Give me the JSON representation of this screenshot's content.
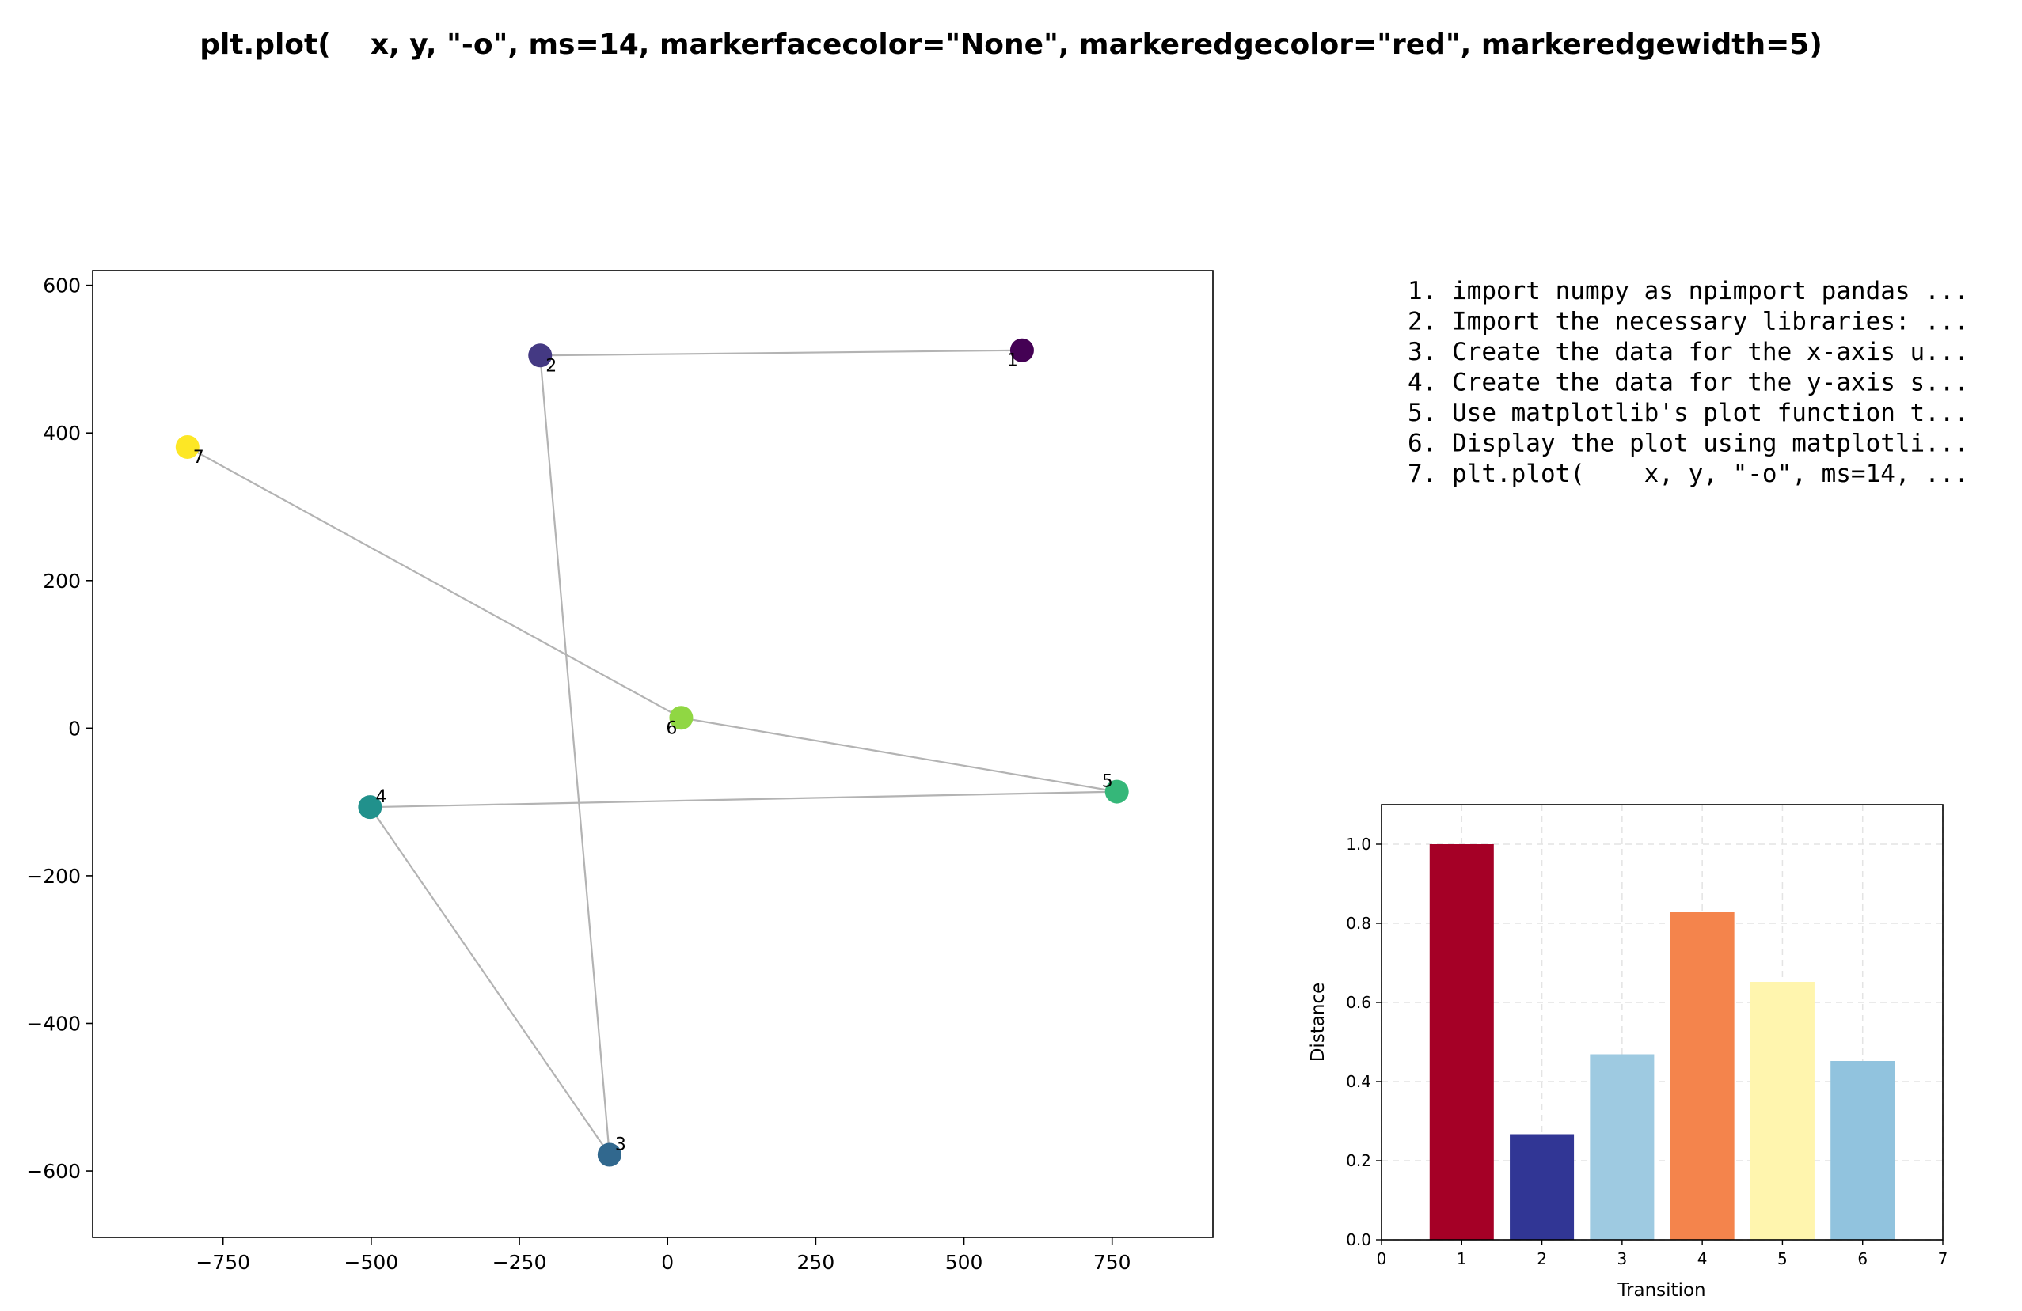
{
  "suptitle": "plt.plot(    x, y, \"-o\", ms=14, markerfacecolor=\"None\", markeredgecolor=\"red\", markeredgewidth=5)",
  "steps": [
    "1. import numpy as npimport pandas ...",
    "2. Import the necessary libraries: ...",
    "3. Create the data for the x-axis u...",
    "4. Create the data for the y-axis s...",
    "5. Use matplotlib's plot function t...",
    "6. Display the plot using matplotli...",
    "7. plt.plot(    x, y, \"-o\", ms=14, ..."
  ],
  "chart_data": [
    {
      "type": "scatter",
      "title": "",
      "xlabel": "",
      "ylabel": "",
      "xlim": [
        -970,
        920
      ],
      "ylim": [
        -690,
        620
      ],
      "xticks": [
        -750,
        -500,
        -250,
        0,
        250,
        500,
        750
      ],
      "xtick_labels": [
        "−750",
        "−500",
        "−250",
        "0",
        "250",
        "500",
        "750"
      ],
      "yticks": [
        -600,
        -400,
        -200,
        0,
        200,
        400,
        600
      ],
      "ytick_labels": [
        "−600",
        "−400",
        "−200",
        "0",
        "200",
        "400",
        "600"
      ],
      "grid": false,
      "line_color": "#b3b3b3",
      "points": [
        {
          "label": "1",
          "x": 598,
          "y": 512,
          "color": "#440154"
        },
        {
          "label": "2",
          "x": -215,
          "y": 505,
          "color": "#443983"
        },
        {
          "label": "3",
          "x": -98,
          "y": -578,
          "color": "#31688e"
        },
        {
          "label": "4",
          "x": -502,
          "y": -107,
          "color": "#21918c"
        },
        {
          "label": "5",
          "x": 758,
          "y": -86,
          "color": "#35b779"
        },
        {
          "label": "6",
          "x": 23,
          "y": 14,
          "color": "#90d743"
        },
        {
          "label": "7",
          "x": -810,
          "y": 381,
          "color": "#fde725"
        }
      ]
    },
    {
      "type": "bar",
      "title": "",
      "xlabel": "Transition",
      "ylabel": "Distance",
      "xlim": [
        0,
        7
      ],
      "ylim": [
        0,
        1.1
      ],
      "xticks": [
        0,
        1,
        2,
        3,
        4,
        5,
        6,
        7
      ],
      "yticks": [
        0.0,
        0.2,
        0.4,
        0.6,
        0.8,
        1.0
      ],
      "ytick_labels": [
        "0.0",
        "0.2",
        "0.4",
        "0.6",
        "0.8",
        "1.0"
      ],
      "grid": true,
      "categories": [
        1,
        2,
        3,
        4,
        5,
        6
      ],
      "values": [
        1.0,
        0.267,
        0.469,
        0.828,
        0.652,
        0.452
      ],
      "colors": [
        "#a50026",
        "#313695",
        "#9ecae1",
        "#f4844c",
        "#fff5ae",
        "#91c3de"
      ]
    }
  ]
}
